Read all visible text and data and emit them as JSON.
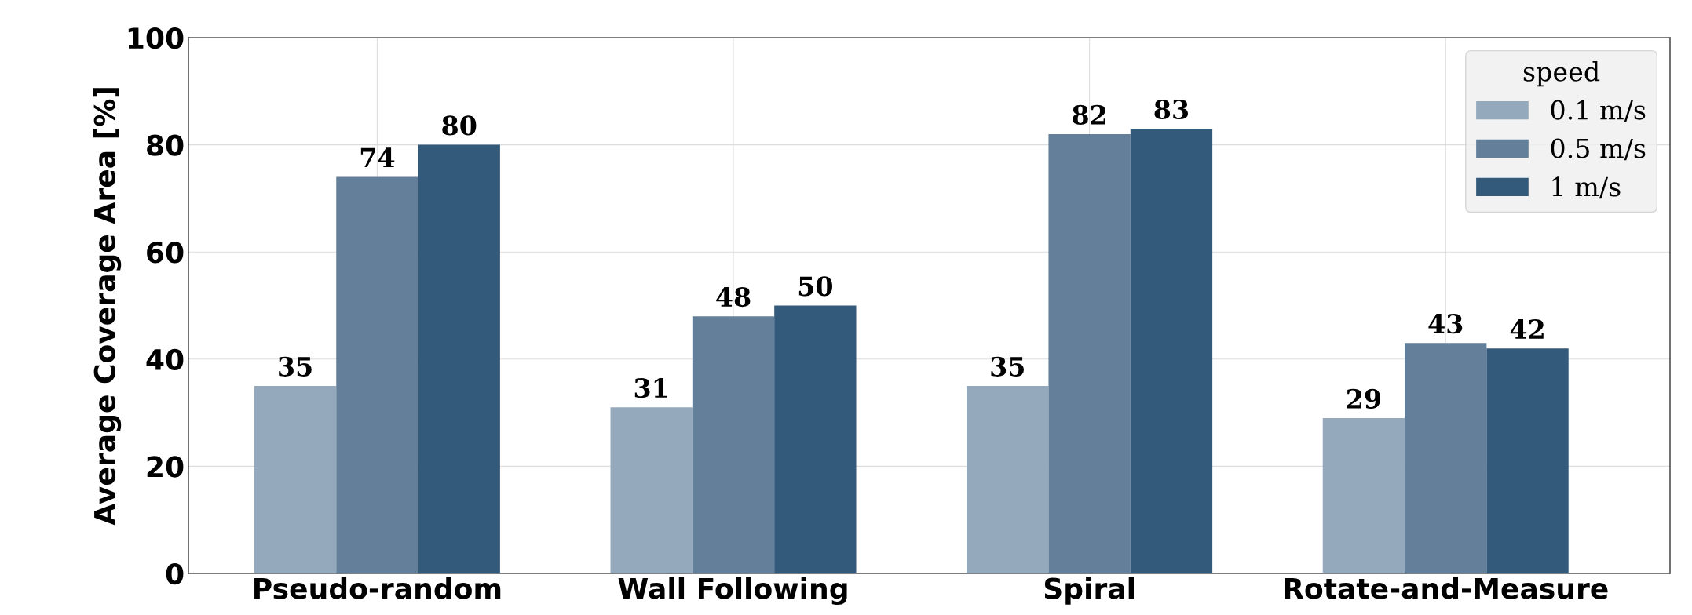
{
  "chart_data": {
    "type": "bar",
    "ylabel": "Average Coverage Area [%]",
    "legend_title": "speed",
    "categories": [
      "Pseudo-random",
      "Wall Following",
      "Spiral",
      "Rotate-and-Measure"
    ],
    "series": [
      {
        "name": "0.1 m/s",
        "color": "#94a9bb",
        "values": [
          35,
          31,
          35,
          29
        ]
      },
      {
        "name": "0.5 m/s",
        "color": "#637f99",
        "values": [
          74,
          48,
          82,
          43
        ]
      },
      {
        "name": "1 m/s",
        "color": "#335a7a",
        "values": [
          80,
          50,
          83,
          42
        ]
      }
    ],
    "ylim": [
      0,
      100
    ],
    "yticks": [
      0,
      20,
      40,
      60,
      80,
      100
    ],
    "grid": true,
    "legend": "top right",
    "data_labels": true
  }
}
